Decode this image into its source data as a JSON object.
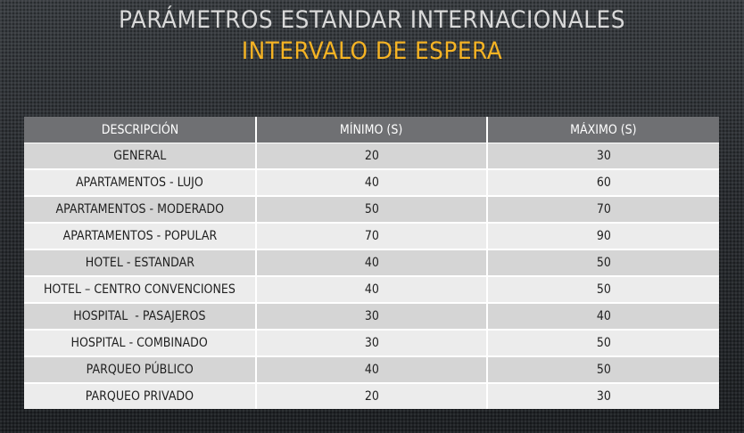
{
  "title": {
    "main": "PARÁMETROS ESTANDAR INTERNACIONALES",
    "sub": "INTERVALO DE ESPERA"
  },
  "colors": {
    "accent": "#f5b324",
    "header_bg": "#6f7073",
    "row_dark": "#d5d5d5",
    "row_light": "#ececec"
  },
  "table": {
    "headers": [
      "DESCRIPCIÓN",
      "MÍNIMO (S)",
      "MÁXIMO (S)"
    ],
    "rows": [
      [
        "GENERAL",
        "20",
        "30"
      ],
      [
        "APARTAMENTOS - LUJO",
        "40",
        "60"
      ],
      [
        "APARTAMENTOS - MODERADO",
        "50",
        "70"
      ],
      [
        "APARTAMENTOS - POPULAR",
        "70",
        "90"
      ],
      [
        "HOTEL - ESTANDAR",
        "40",
        "50"
      ],
      [
        "HOTEL – CENTRO CONVENCIONES",
        "40",
        "50"
      ],
      [
        "HOSPITAL  - PASAJEROS",
        "30",
        "40"
      ],
      [
        "HOSPITAL - COMBINADO",
        "30",
        "50"
      ],
      [
        "PARQUEO PÚBLICO",
        "40",
        "50"
      ],
      [
        "PARQUEO PRIVADO",
        "20",
        "30"
      ]
    ]
  }
}
